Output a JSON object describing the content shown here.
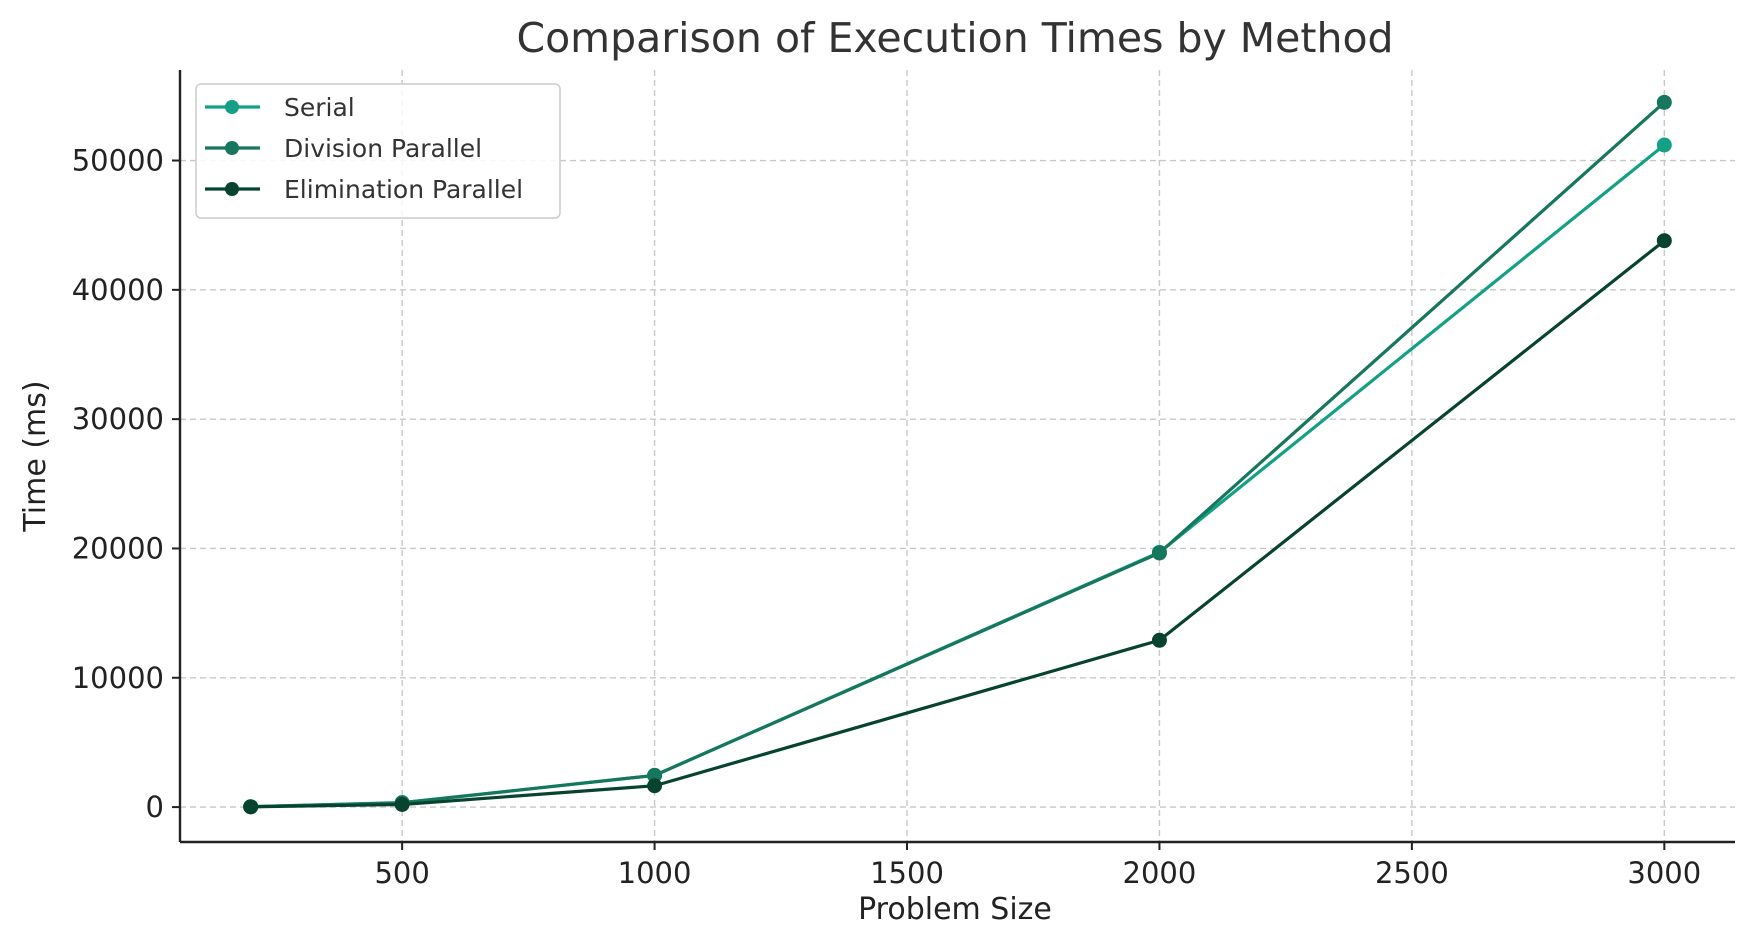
{
  "chart_data": {
    "type": "line",
    "title": "Comparison of Execution Times by Method",
    "xlabel": "Problem Size",
    "ylabel": "Time (ms)",
    "x": [
      200,
      500,
      1000,
      2000,
      3000
    ],
    "xlim": [
      60,
      3140
    ],
    "ylim": [
      -2700,
      57000
    ],
    "xticks": [
      500,
      1000,
      1500,
      2000,
      2500,
      3000
    ],
    "yticks": [
      0,
      10000,
      20000,
      30000,
      40000,
      50000
    ],
    "grid": true,
    "legend_position": "top-left",
    "series": [
      {
        "name": "Serial",
        "color": "#14a085",
        "values": [
          30,
          350,
          2450,
          19700,
          51200
        ]
      },
      {
        "name": "Division Parallel",
        "color": "#16775e",
        "values": [
          30,
          330,
          2450,
          19650,
          54500
        ]
      },
      {
        "name": "Elimination Parallel",
        "color": "#08432f",
        "values": [
          20,
          200,
          1650,
          12900,
          43800
        ]
      }
    ]
  }
}
